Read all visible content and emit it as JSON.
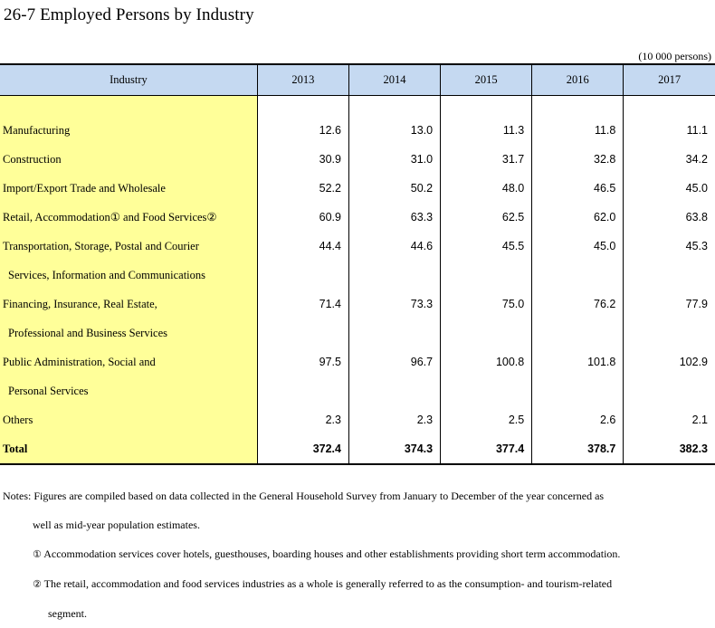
{
  "title": "26-7  Employed Persons by Industry",
  "unit": "(10 000 persons)",
  "header": {
    "industry": "Industry",
    "years": [
      "2013",
      "2014",
      "2015",
      "2016",
      "2017"
    ]
  },
  "rows": [
    {
      "label": "Manufacturing",
      "values": [
        "12.6",
        "13.0",
        "11.3",
        "11.8",
        "11.1"
      ]
    },
    {
      "label": "Construction",
      "values": [
        "30.9",
        "31.0",
        "31.7",
        "32.8",
        "34.2"
      ]
    },
    {
      "label": "Import/Export Trade and Wholesale",
      "values": [
        "52.2",
        "50.2",
        "48.0",
        "46.5",
        "45.0"
      ]
    },
    {
      "label": "Retail, Accommodation① and Food Services②",
      "values": [
        "60.9",
        "63.3",
        "62.5",
        "62.0",
        "63.8"
      ]
    },
    {
      "label": "Transportation, Storage, Postal and Courier",
      "label_cont": "Services, Information and Communications",
      "values": [
        "44.4",
        "44.6",
        "45.5",
        "45.0",
        "45.3"
      ]
    },
    {
      "label": "Financing, Insurance, Real Estate,",
      "label_cont": "Professional and Business Services",
      "values": [
        "71.4",
        "73.3",
        "75.0",
        "76.2",
        "77.9"
      ]
    },
    {
      "label": "Public Administration, Social and",
      "label_cont": "Personal Services",
      "values": [
        "97.5",
        "96.7",
        "100.8",
        "101.8",
        "102.9"
      ]
    },
    {
      "label": "Others",
      "values": [
        "2.3",
        "2.3",
        "2.5",
        "2.6",
        "2.1"
      ]
    }
  ],
  "total": {
    "label": "Total",
    "values": [
      "372.4",
      "374.3",
      "377.4",
      "378.7",
      "382.3"
    ]
  },
  "notes": {
    "line1": "Notes: Figures are compiled based on data collected in the General Household Survey from January to December of the year concerned as",
    "line2": "well as mid-year population estimates.",
    "note1_marker": "①",
    "note1": "Accommodation services cover hotels, guesthouses, boarding houses and other establishments providing short term accommodation.",
    "note2_marker": "②",
    "note2": "The retail, accommodation and food services industries as a whole is generally referred to as the consumption- and tourism-related",
    "note2_cont": "segment."
  },
  "colors": {
    "header_bg": "#c5d9f1",
    "industry_col_bg": "#ffff99"
  }
}
